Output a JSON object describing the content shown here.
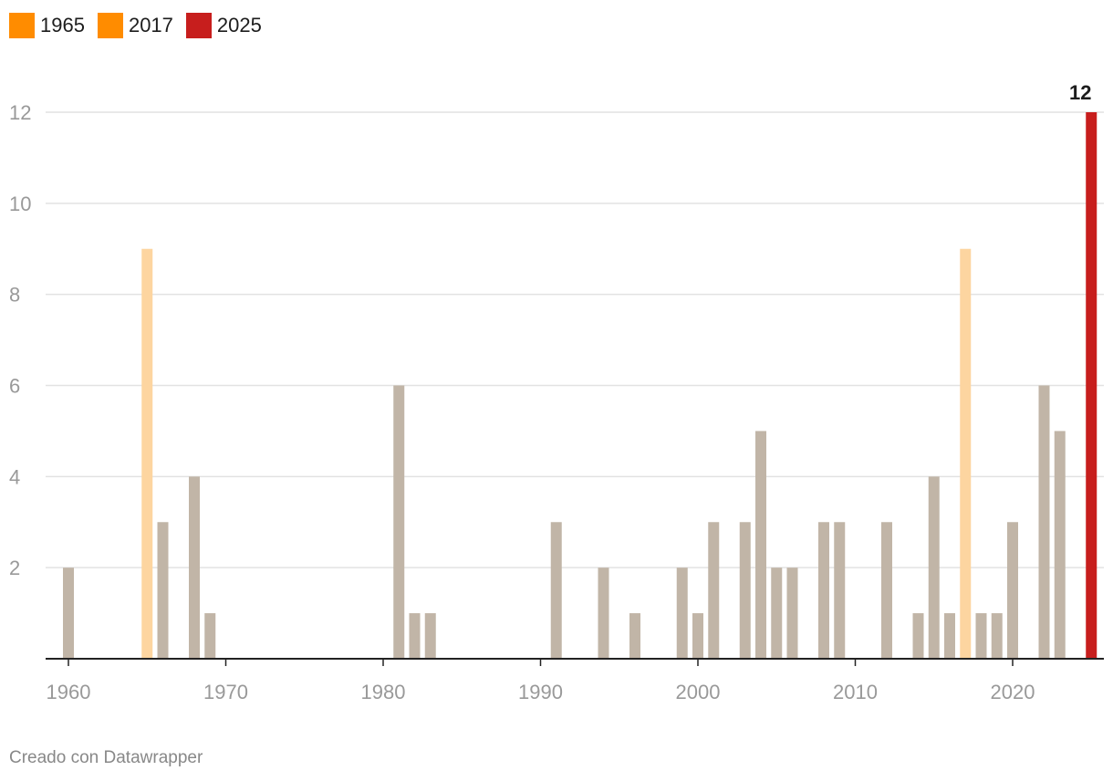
{
  "legend": [
    {
      "label": "1965",
      "color": "#ff8c00"
    },
    {
      "label": "2017",
      "color": "#ff8c00"
    },
    {
      "label": "2025",
      "color": "#c71e1d"
    }
  ],
  "credit": "Creado con Datawrapper",
  "colors": {
    "default_bar": "#c1b5a7",
    "highlight_bar": "#fdd5a0",
    "latest_bar": "#c71e1d",
    "grid": "#e2e2e2",
    "tick_label": "#999999",
    "axis": "#222222",
    "value_label": "#1d1d1d"
  },
  "chart_data": {
    "type": "bar",
    "title": "",
    "xlabel": "",
    "ylabel": "",
    "ylim": [
      0,
      12
    ],
    "y_ticks": [
      2,
      4,
      6,
      8,
      10,
      12
    ],
    "x_ticks": [
      1960,
      1970,
      1980,
      1990,
      2000,
      2010,
      2020
    ],
    "xlim": [
      1960,
      2025
    ],
    "highlighted_years": [
      1965,
      2017
    ],
    "latest_year": 2025,
    "value_labels": [
      {
        "year": 2025,
        "text": "12"
      }
    ],
    "years": [
      1960,
      1965,
      1966,
      1968,
      1969,
      1981,
      1982,
      1983,
      1991,
      1994,
      1996,
      1999,
      2000,
      2001,
      2003,
      2004,
      2005,
      2006,
      2008,
      2009,
      2012,
      2014,
      2015,
      2016,
      2017,
      2018,
      2019,
      2020,
      2022,
      2023,
      2025
    ],
    "values": [
      2,
      9,
      3,
      4,
      1,
      6,
      1,
      1,
      3,
      2,
      1,
      2,
      1,
      3,
      3,
      5,
      2,
      2,
      3,
      3,
      3,
      1,
      4,
      1,
      9,
      1,
      1,
      3,
      6,
      5,
      12
    ]
  }
}
